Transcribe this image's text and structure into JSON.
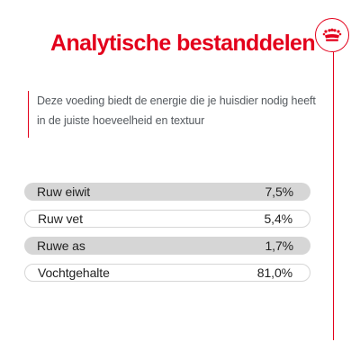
{
  "title": "Analytische bestanddelen",
  "intro": "Deze voeding biedt de energie die je huisdier nodig heeft in de juiste hoeveelheid en textuur",
  "brand": {
    "icon": "crown-icon"
  },
  "colors": {
    "accent": "#e3001b",
    "row_shade": "#d6d6d6"
  },
  "rows": [
    {
      "label": "Ruw eiwit",
      "value": "7,5%"
    },
    {
      "label": "Ruw vet",
      "value": "5,4%"
    },
    {
      "label": "Ruwe as",
      "value": "1,7%"
    },
    {
      "label": "Vochtgehalte",
      "value": "81,0%"
    }
  ]
}
